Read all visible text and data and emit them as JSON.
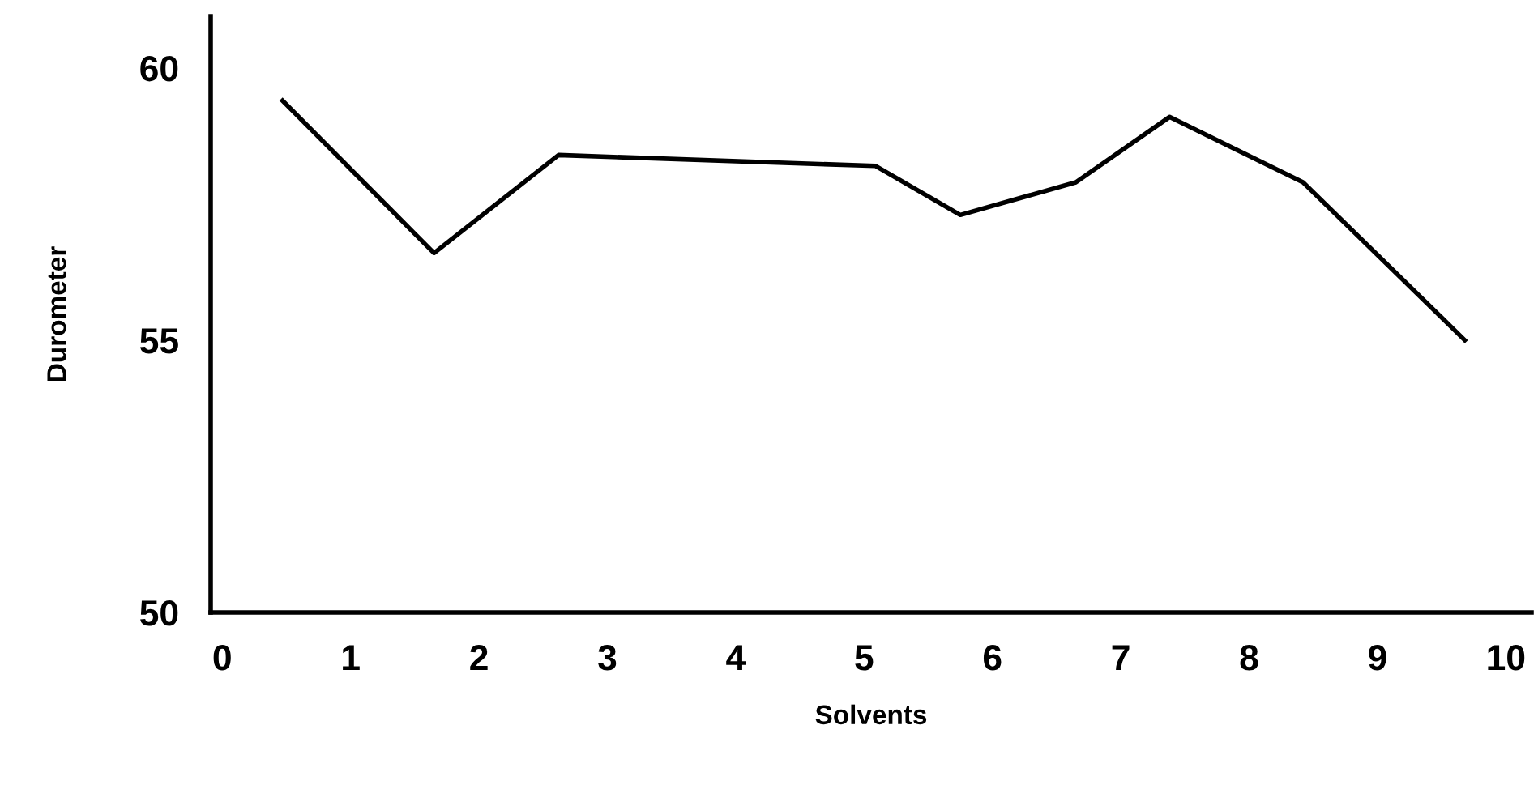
{
  "chart_data": {
    "type": "line",
    "xlabel": "Solvents",
    "ylabel": "Durometer",
    "x": [
      0.47,
      1.65,
      2.62,
      5.09,
      5.75,
      6.65,
      7.38,
      8.42,
      9.68
    ],
    "series": [
      {
        "color": "#000000",
        "values": [
          59.4,
          56.6,
          58.4,
          58.2,
          57.3,
          57.9,
          59.1,
          57.9,
          55.0
        ]
      }
    ],
    "xlim": [
      -0.09,
      10.2
    ],
    "ylim": [
      50,
      60.95
    ],
    "xticks": [
      0,
      1,
      2,
      3,
      4,
      5,
      6,
      7,
      8,
      9,
      10
    ],
    "yticks": [
      50,
      55,
      60
    ],
    "grid": false,
    "legend": false,
    "marker": "none",
    "line_style": "solid"
  }
}
